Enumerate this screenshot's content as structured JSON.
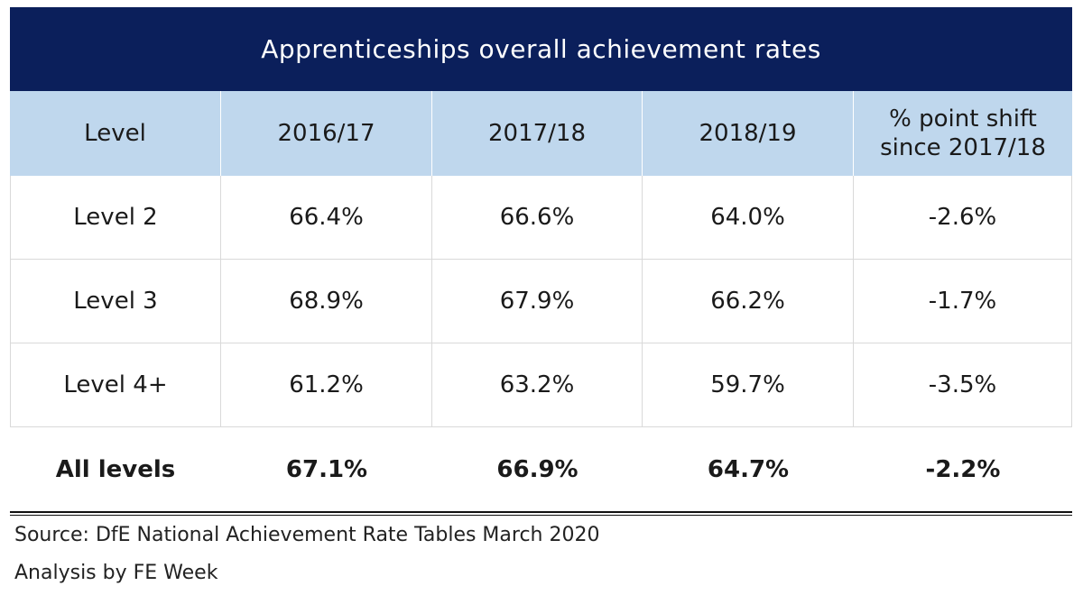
{
  "chart_data": {
    "type": "table",
    "title": "Apprenticeships overall achievement rates",
    "columns": [
      "Level",
      "2016/17",
      "2017/18",
      "2018/19",
      "% point shift since 2017/18"
    ],
    "rows": [
      [
        "Level 2",
        "66.4%",
        "66.6%",
        "64.0%",
        "-2.6%"
      ],
      [
        "Level 3",
        "68.9%",
        "67.9%",
        "66.2%",
        "-1.7%"
      ],
      [
        "Level 4+",
        "61.2%",
        "63.2%",
        "59.7%",
        "-3.5%"
      ]
    ],
    "total": [
      "All levels",
      "67.1%",
      "66.9%",
      "64.7%",
      "-2.2%"
    ],
    "header_color": "#0b1f5b",
    "column_header_color": "#bfd7ed"
  },
  "footer": {
    "source": "Source: DfE National Achievement Rate Tables March 2020",
    "analysis": "Analysis by FE Week"
  }
}
